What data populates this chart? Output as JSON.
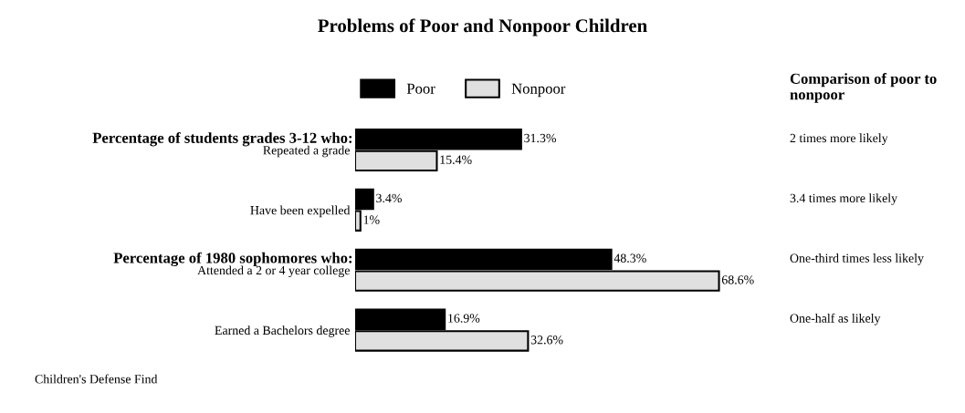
{
  "chart_data": {
    "type": "bar",
    "orientation": "horizontal",
    "title": "Problems of Poor and Nonpoor Children",
    "categories": [
      "Repeated a grade",
      "Have been expelled",
      "Attended a 2 or 4 year college",
      "Earned a Bachelors degree"
    ],
    "series": [
      {
        "name": "Poor",
        "color": "#000000",
        "values": [
          31.3,
          3.4,
          48.3,
          16.9
        ],
        "value_labels": [
          "31.3%",
          "3.4%",
          "48.3%",
          "16.9%"
        ]
      },
      {
        "name": "Nonpoor",
        "color": "#e0e0e0",
        "values": [
          15.4,
          1,
          68.6,
          32.6
        ],
        "value_labels": [
          "15.4%",
          "1%",
          "68.6%",
          "32.6%"
        ]
      }
    ],
    "legend": "top",
    "annotations": [
      "Percentage of students grades 3-12 who:",
      "Percentage of 1980 sophomores who:",
      "Comparison of poor to nonpoor",
      "2 times more likely",
      "3.4 times more likely",
      "One-third times less likely",
      "One-half as likely",
      "Children's Defense Find"
    ]
  }
}
